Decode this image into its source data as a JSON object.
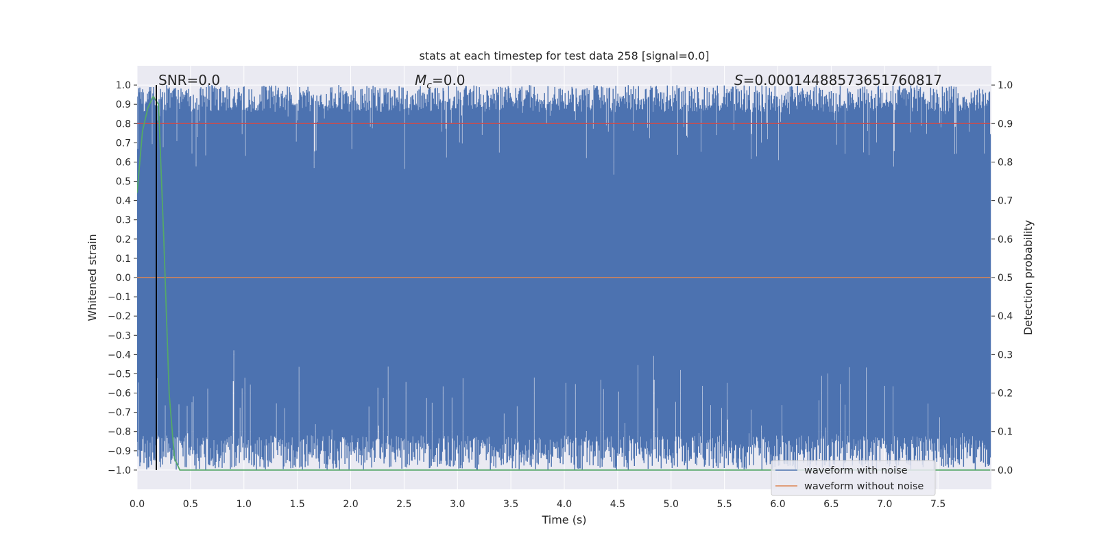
{
  "chart_data": {
    "type": "line",
    "title": "stats at each timestep for test data 258 [signal=0.0]",
    "xlabel": "Time (s)",
    "ylabel_left": "Whitened strain",
    "ylabel_right": "Detection probability",
    "xlim": [
      0.0,
      8.0
    ],
    "ylim_left": [
      -1.1,
      1.1
    ],
    "ylim_right": [
      -0.05,
      1.05
    ],
    "x_ticks": [
      "0.0",
      "0.5",
      "1.0",
      "1.5",
      "2.0",
      "2.5",
      "3.0",
      "3.5",
      "4.0",
      "4.5",
      "5.0",
      "5.5",
      "6.0",
      "6.5",
      "7.0",
      "7.5"
    ],
    "y_left_ticks": [
      "1.0",
      "0.9",
      "0.8",
      "0.7",
      "0.6",
      "0.5",
      "0.4",
      "0.3",
      "0.2",
      "0.1",
      "0.0",
      "−0.1",
      "−0.2",
      "−0.3",
      "−0.4",
      "−0.5",
      "−0.6",
      "−0.7",
      "−0.8",
      "−0.9",
      "−1.0"
    ],
    "y_right_ticks": [
      "1.0",
      "0.9",
      "0.8",
      "0.7",
      "0.6",
      "0.5",
      "0.4",
      "0.3",
      "0.2",
      "0.1",
      "0.0"
    ],
    "grid": true,
    "annotations": {
      "snr": "SNR=0.0",
      "mc_symbol": "M",
      "mc_sub": "c",
      "mc_value": "=0.0",
      "s_symbol": "S",
      "s_value": "=0.00014488573651760817"
    },
    "legend": {
      "location": "lower-right",
      "entries": [
        "waveform with noise",
        "waveform without noise"
      ]
    },
    "series": [
      {
        "name": "waveform with noise",
        "axis": "left",
        "color": "#4c72b0",
        "description": "dense whitened noise spanning roughly -1.0 to 1.0 over 0.0-8.0 s",
        "x_range": [
          0.0,
          7.99
        ],
        "y_range": [
          -1.0,
          1.0
        ],
        "upper_envelope_base": 0.86,
        "lower_envelope_base": -0.82
      },
      {
        "name": "waveform without noise",
        "axis": "left",
        "color": "#dd8452",
        "x": [
          0.0,
          7.99
        ],
        "y": [
          0.0,
          0.0
        ]
      },
      {
        "name": "detection probability",
        "axis": "right",
        "color": "#55a868",
        "x": [
          0.0,
          0.05,
          0.1,
          0.15,
          0.2,
          0.25,
          0.3,
          0.35,
          0.4,
          1.0,
          3.0,
          5.0,
          7.99
        ],
        "y": [
          0.72,
          0.88,
          0.94,
          0.97,
          0.95,
          0.6,
          0.2,
          0.03,
          0.0,
          0.0,
          0.0,
          0.0,
          0.0
        ]
      },
      {
        "name": "threshold",
        "axis": "right",
        "color": "#c44e52",
        "x": [
          0.0,
          7.99
        ],
        "y": [
          0.9,
          0.9
        ]
      },
      {
        "name": "marker",
        "axis": "left",
        "color": "#000000",
        "x": [
          0.18,
          0.18
        ],
        "y": [
          -1.0,
          1.0
        ]
      }
    ]
  }
}
